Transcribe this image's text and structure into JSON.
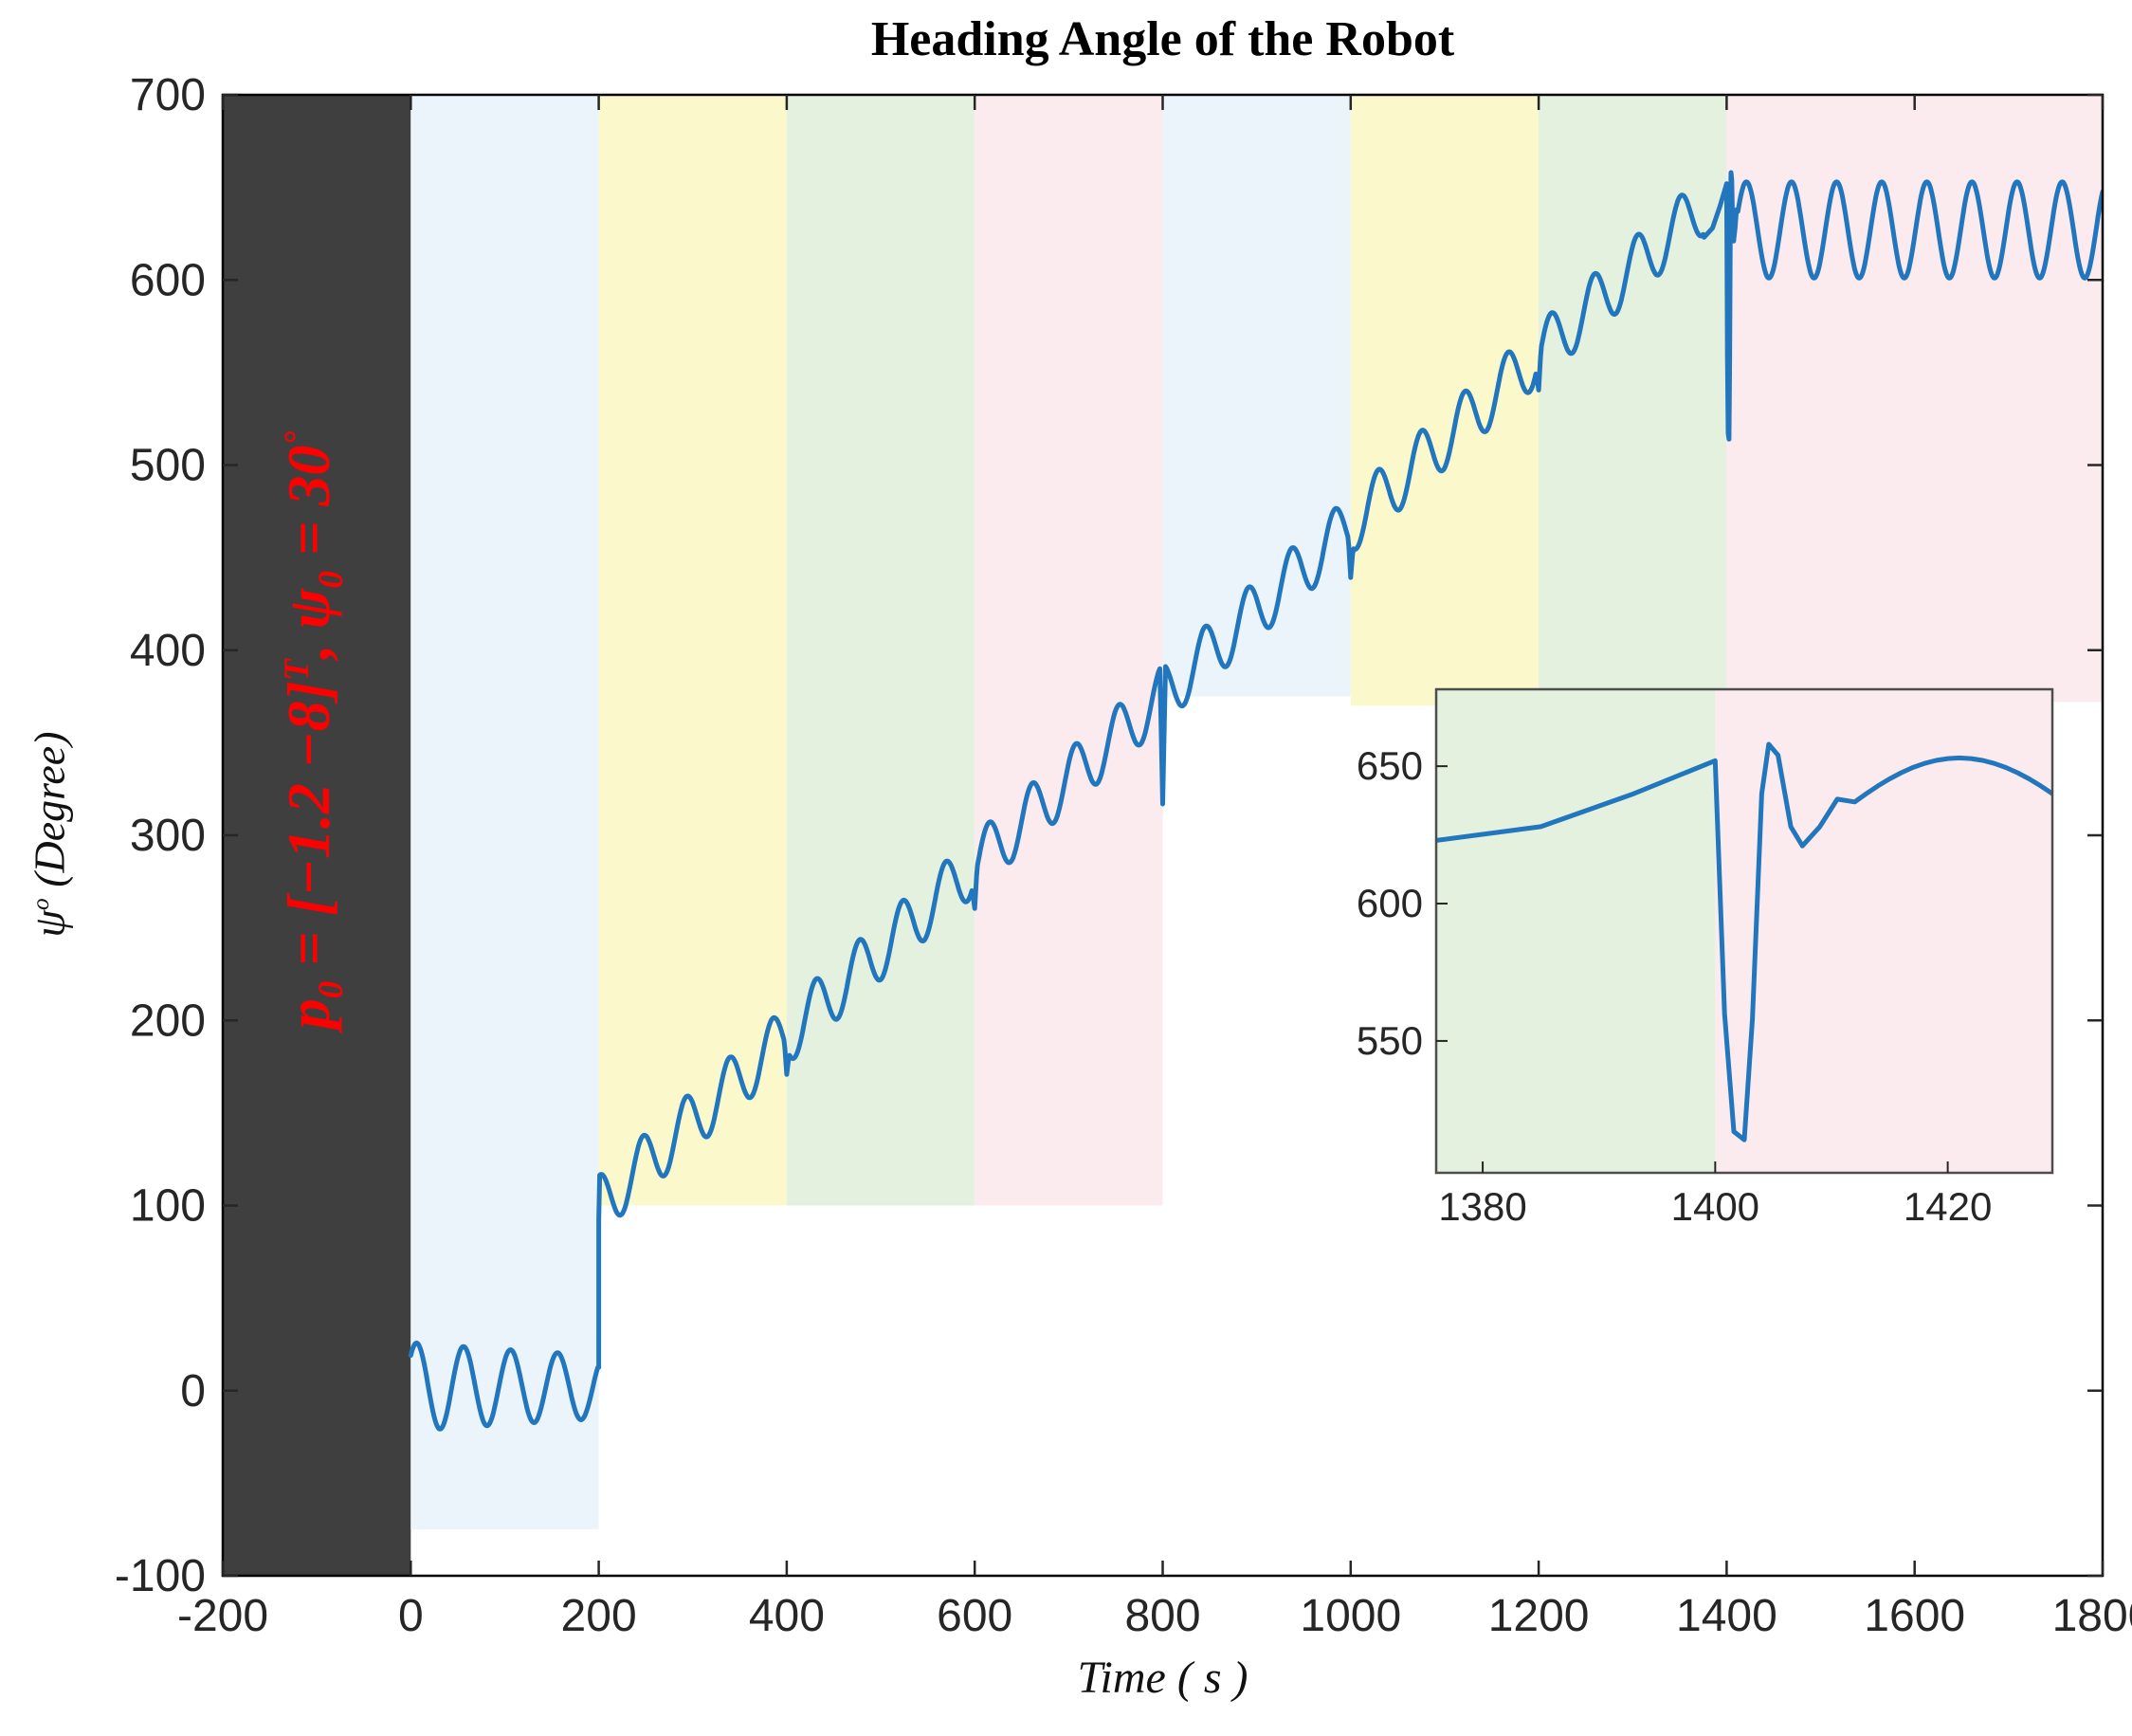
{
  "figure": {
    "title": "Heading Angle of the Robot",
    "xlabel": "Time ( s )"
  },
  "ylabel": {
    "symbol": "ψ",
    "sup": "o",
    "rest": " (Degree)"
  },
  "annotation": {
    "text": "p0 = [−1.2  −8]T, ψ0 = 30°",
    "p": "p",
    "p_sub": "0",
    "seg1": " = [−1.2  −8]",
    "sup_T": "T",
    "seg2": ", ψ",
    "psi_sub": "0",
    "seg3": " = 30",
    "deg": "°",
    "color": "#ff0000"
  },
  "chart_data": {
    "type": "line",
    "title": "Heading Angle of the Robot",
    "xlabel": "Time ( s )",
    "ylabel": "psi^o (Degree)",
    "xlim": [
      -200,
      1800
    ],
    "ylim": [
      -100,
      700
    ],
    "x_ticks": [
      -200,
      0,
      200,
      400,
      600,
      800,
      1000,
      1200,
      1400,
      1600,
      1800
    ],
    "y_ticks": [
      -100,
      0,
      100,
      200,
      300,
      400,
      500,
      600,
      700
    ],
    "grid": false,
    "legend": null,
    "line_color": "#2176bd",
    "line_width": 5,
    "axis_color": "#262626",
    "bands": [
      {
        "x0": -200,
        "x1": 0,
        "y0": -100,
        "y1": 700,
        "color": "#3f3f3f"
      },
      {
        "x0": 0,
        "x1": 200,
        "y0": -75,
        "y1": 700,
        "color": "#ecf4fb"
      },
      {
        "x0": 200,
        "x1": 400,
        "y0": 100,
        "y1": 700,
        "color": "#fbf9cb"
      },
      {
        "x0": 400,
        "x1": 600,
        "y0": 100,
        "y1": 700,
        "color": "#e4f1df"
      },
      {
        "x0": 600,
        "x1": 800,
        "y0": 100,
        "y1": 700,
        "color": "#fcebee"
      },
      {
        "x0": 800,
        "x1": 1000,
        "y0": 375,
        "y1": 700,
        "color": "#ecf4fb"
      },
      {
        "x0": 1000,
        "x1": 1200,
        "y0": 370,
        "y1": 700,
        "color": "#fbf9cb"
      },
      {
        "x0": 1200,
        "x1": 1400,
        "y0": 370,
        "y1": 700,
        "color": "#e4f1df"
      },
      {
        "x0": 1400,
        "x1": 1800,
        "y0": 372,
        "y1": 700,
        "color": "#fcebee"
      }
    ],
    "keypoints": [
      [
        0,
        25
      ],
      [
        31,
        -20
      ],
      [
        100,
        -15
      ],
      [
        181,
        -18
      ],
      [
        200,
        -6
      ],
      [
        200,
        92
      ],
      [
        400,
        193
      ],
      [
        600,
        290
      ],
      [
        800,
        392
      ],
      [
        800,
        317
      ],
      [
        1000,
        458
      ],
      [
        1200,
        560
      ],
      [
        1376,
        623
      ],
      [
        1400,
        652
      ],
      [
        1402,
        514
      ],
      [
        1404.6,
        658
      ],
      [
        1407.5,
        621
      ],
      [
        1421,
        653
      ],
      [
        1445,
        601
      ],
      [
        1600,
        640
      ],
      [
        1800,
        640
      ]
    ],
    "model": {
      "phase1": {
        "t0": 0,
        "t1": 200,
        "mean": 2,
        "amp": 24,
        "period": 50,
        "phase": 5.5,
        "decay": 600
      },
      "jump": {
        "t": 200,
        "to": 92
      },
      "phase2": {
        "t0": 200,
        "t1": 1375,
        "y0": 100,
        "y1": 652,
        "slope_end": 1400,
        "amp": 16,
        "period": 46,
        "phase": 1.42
      },
      "glitches": [
        {
          "t": 400,
          "depth": 14,
          "width": 2.5
        },
        {
          "t": 600,
          "depth": 16,
          "width": 2.5
        },
        {
          "t": 800,
          "depth": 75,
          "width": 3
        },
        {
          "t": 1000,
          "depth": 18,
          "width": 2.5
        },
        {
          "t": 1200,
          "depth": 16,
          "width": 2.5
        }
      ],
      "transient_1400": [
        [
          1376,
          623
        ],
        [
          1385,
          628
        ],
        [
          1393,
          640
        ],
        [
          1400,
          652
        ],
        [
          1400.8,
          560
        ],
        [
          1401.6,
          517
        ],
        [
          1402.5,
          514
        ],
        [
          1403.2,
          558
        ],
        [
          1404,
          640
        ],
        [
          1404.6,
          658
        ],
        [
          1405.4,
          654
        ],
        [
          1406.5,
          628
        ],
        [
          1407.5,
          621
        ],
        [
          1409,
          628
        ],
        [
          1410.5,
          638
        ],
        [
          1412,
          637
        ]
      ],
      "phase3": {
        "t0": 1412,
        "t1": 1800,
        "mean": 627,
        "amp": 26,
        "period": 48,
        "peak_t": 1421
      }
    },
    "inset": {
      "xlim": [
        1376,
        1429
      ],
      "ylim": [
        502,
        678
      ],
      "x_ticks": [
        1380,
        1400,
        1420
      ],
      "y_ticks": [
        550,
        600,
        650
      ],
      "bands": [
        {
          "x0": 1376,
          "x1": 1400,
          "color": "#e4f1df"
        },
        {
          "x0": 1400,
          "x1": 1429,
          "color": "#fcebee"
        }
      ]
    }
  }
}
